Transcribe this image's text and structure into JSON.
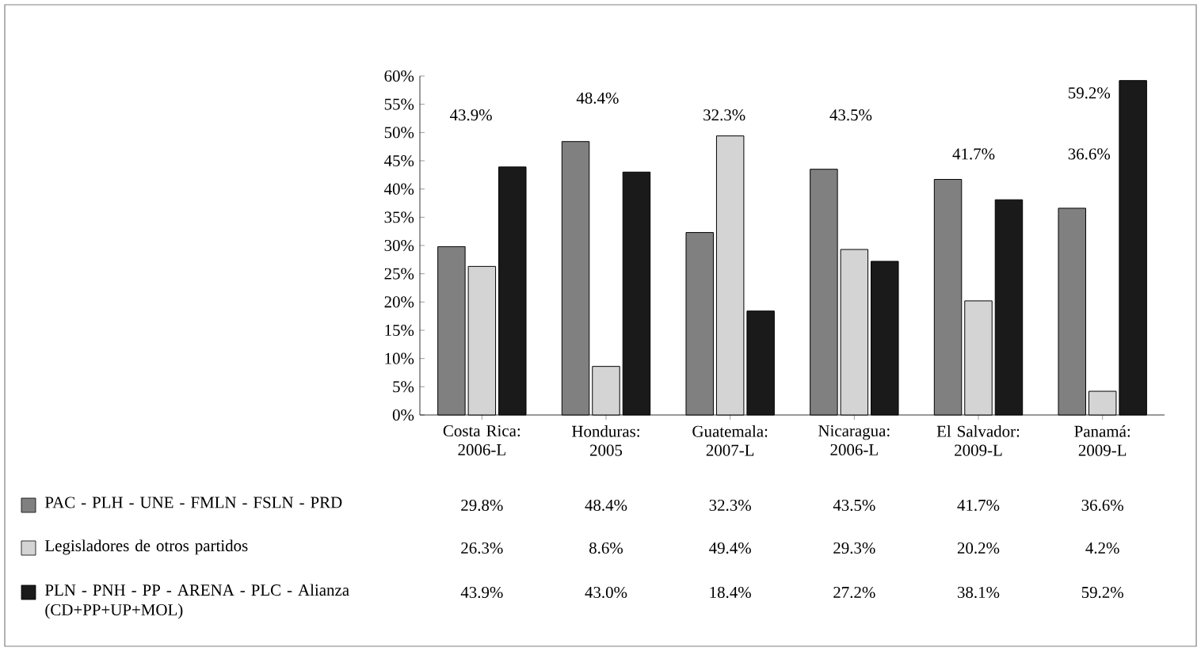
{
  "chart_data": {
    "type": "bar",
    "categories": [
      "Costa Rica: 2006-L",
      "Honduras: 2005",
      "Guatemala: 2007-L",
      "Nicaragua: 2006-L",
      "El Salvador: 2009-L",
      "Panamá: 2009-L"
    ],
    "series": [
      {
        "name": "PAC - PLH - UNE - FMLN - FSLN - PRD",
        "color": "#808080",
        "values": [
          29.8,
          48.4,
          32.3,
          43.5,
          41.7,
          36.6
        ],
        "value_labels": [
          "29.8%",
          "48.4%",
          "32.3%",
          "43.5%",
          "41.7%",
          "36.6%"
        ]
      },
      {
        "name": "Legisladores de otros partidos",
        "color": "#d4d4d4",
        "values": [
          26.3,
          8.6,
          49.4,
          29.3,
          20.2,
          4.2
        ],
        "value_labels": [
          "26.3%",
          "8.6%",
          "49.4%",
          "29.3%",
          "20.2%",
          "4.2%"
        ]
      },
      {
        "name": "PLN - PNH - PP - ARENA - PLC - Alianza (CD+PP+UP+MOL)",
        "color": "#1a1a1a",
        "values": [
          43.9,
          43.0,
          18.4,
          27.2,
          38.1,
          59.2
        ],
        "value_labels": [
          "43.9%",
          "43.0%",
          "18.4%",
          "27.2%",
          "38.1%",
          "59.2%"
        ]
      }
    ],
    "ylim": [
      0,
      60
    ],
    "yticks": [
      {
        "value": 0,
        "label": "0%"
      },
      {
        "value": 5,
        "label": "5%"
      },
      {
        "value": 10,
        "label": "10%"
      },
      {
        "value": 15,
        "label": "15%"
      },
      {
        "value": 20,
        "label": "20%"
      },
      {
        "value": 25,
        "label": "25%"
      },
      {
        "value": 30,
        "label": "30%"
      },
      {
        "value": 35,
        "label": "35%"
      },
      {
        "value": 40,
        "label": "40%"
      },
      {
        "value": 45,
        "label": "45%"
      },
      {
        "value": 50,
        "label": "50%"
      },
      {
        "value": 55,
        "label": "55%"
      },
      {
        "value": 60,
        "label": "60%"
      }
    ],
    "annotations": [
      "43.9%",
      "48.4%",
      "32.3%",
      "43.5%",
      "41.7%",
      "59.2%",
      "36.6%"
    ],
    "legend": "bottom left",
    "grid": false
  }
}
